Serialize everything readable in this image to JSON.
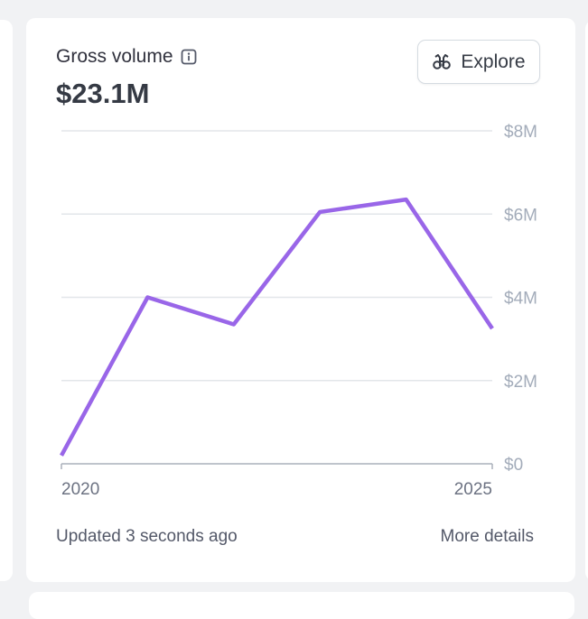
{
  "card": {
    "title": "Gross volume",
    "total": "$23.1M",
    "explore_label": "Explore",
    "updated_text": "Updated 3 seconds ago",
    "more_details_label": "More details"
  },
  "icons": {
    "info": "info-icon",
    "explore": "binoculars-icon"
  },
  "colors": {
    "line": "#9966e8",
    "grid": "#e3e6ea",
    "axis": "#aab0bb",
    "tick_text": "#a3acba",
    "x_tick_text": "#6c7282"
  },
  "chart_data": {
    "type": "line",
    "x": [
      2020,
      2021,
      2022,
      2023,
      2024,
      2025
    ],
    "series": [
      {
        "values": [
          0.2,
          4.0,
          3.35,
          6.05,
          6.35,
          3.25
        ]
      }
    ],
    "xlim": [
      2020,
      2025
    ],
    "ylim": [
      0,
      8
    ],
    "y_ticks": [
      "$0",
      "$2M",
      "$4M",
      "$6M",
      "$8M"
    ],
    "x_tick_labels": [
      "2020",
      "2025"
    ],
    "y_axis_position": "right",
    "grid": true
  }
}
